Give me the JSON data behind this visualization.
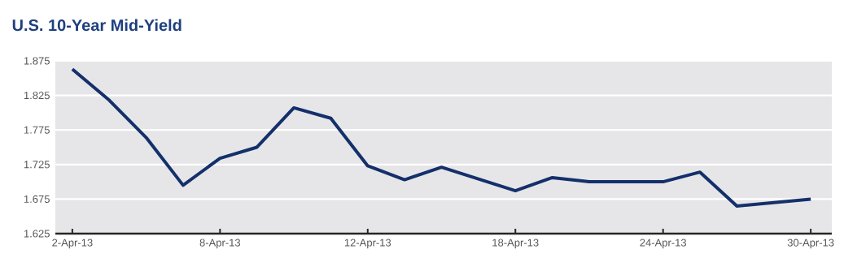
{
  "chart_data": {
    "type": "line",
    "title": "U.S. 10-Year Mid-Yield",
    "categories": [
      "2-Apr-13",
      null,
      null,
      null,
      "8-Apr-13",
      null,
      null,
      null,
      "12-Apr-13",
      null,
      null,
      null,
      "18-Apr-13",
      null,
      null,
      null,
      "24-Apr-13",
      null,
      null,
      null,
      "30-Apr-13"
    ],
    "series": [
      {
        "color": "#14306b",
        "values": [
          1.863,
          1.818,
          1.764,
          1.695,
          1.734,
          1.75,
          1.807,
          1.792,
          1.723,
          1.703,
          1.721,
          1.704,
          1.687,
          1.706,
          1.7,
          1.7,
          1.7,
          1.714,
          1.665,
          1.67,
          1.675
        ]
      }
    ],
    "ylim": [
      1.625,
      1.875
    ],
    "yticks": [
      1.625,
      1.675,
      1.725,
      1.775,
      1.825,
      1.875
    ],
    "grid": "y"
  }
}
